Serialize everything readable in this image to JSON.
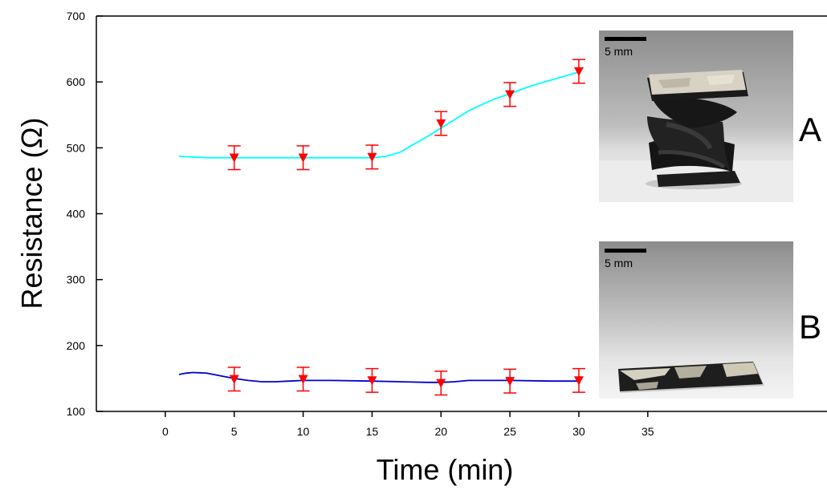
{
  "chart_data": {
    "type": "line",
    "xlabel": "Time (min)",
    "ylabel": "Resistance (Ω)",
    "xlim": [
      -5,
      48
    ],
    "ylim": [
      100,
      700
    ],
    "x_ticks": [
      0,
      5,
      10,
      15,
      20,
      25,
      30,
      35
    ],
    "y_ticks": [
      100,
      200,
      300,
      400,
      500,
      600,
      700
    ],
    "grid": false,
    "series": [
      {
        "id": "A",
        "color": "#00ffff",
        "curve": [
          [
            1,
            487
          ],
          [
            2,
            486
          ],
          [
            3,
            485
          ],
          [
            5,
            485
          ],
          [
            8,
            485
          ],
          [
            11,
            485
          ],
          [
            14,
            485
          ],
          [
            15,
            485
          ],
          [
            16,
            487
          ],
          [
            17,
            493
          ],
          [
            18,
            505
          ],
          [
            19,
            517
          ],
          [
            20,
            530
          ],
          [
            21,
            543
          ],
          [
            22,
            556
          ],
          [
            23,
            566
          ],
          [
            24,
            575
          ],
          [
            25,
            582
          ],
          [
            26,
            590
          ],
          [
            27,
            597
          ],
          [
            28,
            603
          ],
          [
            29,
            609
          ],
          [
            30,
            615
          ]
        ],
        "points": [
          {
            "x": 5,
            "y": 485,
            "err": 18
          },
          {
            "x": 10,
            "y": 485,
            "err": 18
          },
          {
            "x": 15,
            "y": 486,
            "err": 18
          },
          {
            "x": 20,
            "y": 537,
            "err": 18
          },
          {
            "x": 25,
            "y": 581,
            "err": 18
          },
          {
            "x": 30,
            "y": 616,
            "err": 18
          }
        ]
      },
      {
        "id": "B",
        "color": "#0000cd",
        "curve": [
          [
            1,
            156
          ],
          [
            1.5,
            158
          ],
          [
            2,
            159
          ],
          [
            3,
            158
          ],
          [
            4,
            154
          ],
          [
            5,
            150
          ],
          [
            6,
            147
          ],
          [
            7,
            145
          ],
          [
            8,
            145
          ],
          [
            9,
            146
          ],
          [
            10,
            147
          ],
          [
            12,
            147
          ],
          [
            15,
            146
          ],
          [
            17,
            145
          ],
          [
            19,
            144
          ],
          [
            20,
            144
          ],
          [
            21,
            145
          ],
          [
            22,
            147
          ],
          [
            25,
            147
          ],
          [
            28,
            146
          ],
          [
            30,
            146
          ]
        ],
        "points": [
          {
            "x": 5,
            "y": 149,
            "err": 18
          },
          {
            "x": 10,
            "y": 149,
            "err": 18
          },
          {
            "x": 15,
            "y": 147,
            "err": 18
          },
          {
            "x": 20,
            "y": 143,
            "err": 18
          },
          {
            "x": 25,
            "y": 146,
            "err": 18
          },
          {
            "x": 30,
            "y": 147,
            "err": 18
          }
        ]
      }
    ],
    "marker_color": "#ff0000",
    "marker": "triangle-down",
    "insets": [
      {
        "label": "A",
        "scale_bar": "5 mm",
        "depicts": "spring-shaped-sample-photo"
      },
      {
        "label": "B",
        "scale_bar": "5 mm",
        "depicts": "flat-sample-photo"
      }
    ]
  }
}
